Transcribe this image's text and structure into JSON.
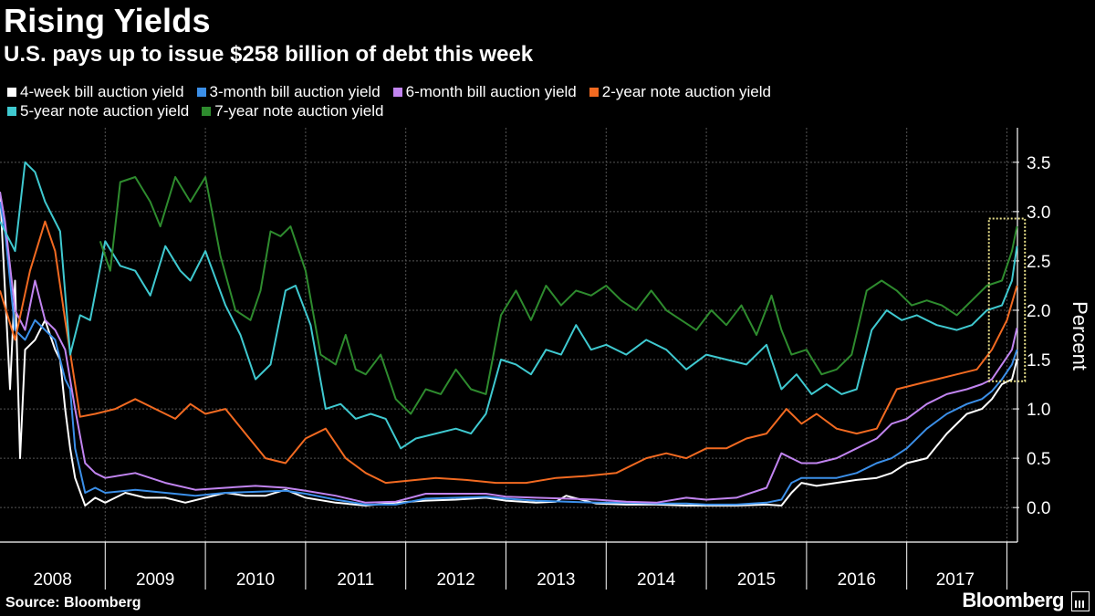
{
  "header": {
    "title": "Rising Yields",
    "subtitle": "U.S. pays up to issue $258 billion of debt this week"
  },
  "footer": {
    "source": "Source: Bloomberg",
    "brand": "Bloomberg"
  },
  "colors": {
    "bg": "#000000",
    "grid": "#555555",
    "highlight": "#e8e08a"
  },
  "chart_data": {
    "type": "line",
    "title": "Rising Yields",
    "subtitle": "U.S. pays up to issue $258 billion of debt this week",
    "xlabel": "",
    "ylabel": "Percent",
    "x_range": [
      2007.95,
      2017.95
    ],
    "ylim": [
      -0.35,
      3.85
    ],
    "y_ticks": [
      0.0,
      0.5,
      1.0,
      1.5,
      2.0,
      2.5,
      3.0,
      3.5
    ],
    "y_tick_labels": [
      "0.0",
      "0.5",
      "1.0",
      "1.5",
      "2.0",
      "2.5",
      "3.0",
      "3.5"
    ],
    "x_tick_labels": [
      "2008",
      "2009",
      "2010",
      "2011",
      "2012",
      "2013",
      "2014",
      "2015",
      "2016",
      "2017"
    ],
    "highlight_box": {
      "x": [
        2017.82,
        2018.18
      ],
      "y": [
        1.28,
        2.93
      ]
    },
    "legend_rows": [
      [
        0,
        1,
        2,
        3
      ],
      [
        4,
        5
      ]
    ],
    "series": [
      {
        "name": "4-week bill auction yield",
        "color": "#ffffff",
        "x": [
          2007.95,
          2008.0,
          2008.05,
          2008.1,
          2008.15,
          2008.2,
          2008.3,
          2008.4,
          2008.5,
          2008.55,
          2008.6,
          2008.65,
          2008.7,
          2008.8,
          2008.9,
          2009.0,
          2009.2,
          2009.4,
          2009.6,
          2009.8,
          2010.0,
          2010.2,
          2010.4,
          2010.6,
          2010.8,
          2011.0,
          2011.3,
          2011.6,
          2011.9,
          2012.2,
          2012.5,
          2012.8,
          2013.0,
          2013.3,
          2013.5,
          2013.6,
          2013.9,
          2014.2,
          2014.5,
          2014.8,
          2015.0,
          2015.3,
          2015.6,
          2015.75,
          2015.85,
          2015.95,
          2016.1,
          2016.3,
          2016.5,
          2016.7,
          2016.85,
          2017.0,
          2017.2,
          2017.4,
          2017.6,
          2017.75,
          2017.85,
          2017.95,
          2018.05,
          2018.1
        ],
        "y": [
          3.2,
          2.2,
          1.2,
          2.3,
          0.5,
          1.6,
          1.7,
          1.9,
          1.6,
          1.5,
          1.0,
          0.6,
          0.3,
          0.02,
          0.1,
          0.05,
          0.15,
          0.1,
          0.1,
          0.05,
          0.1,
          0.15,
          0.12,
          0.12,
          0.18,
          0.1,
          0.05,
          0.02,
          0.05,
          0.07,
          0.08,
          0.1,
          0.07,
          0.05,
          0.06,
          0.12,
          0.04,
          0.03,
          0.03,
          0.02,
          0.02,
          0.02,
          0.03,
          0.02,
          0.15,
          0.25,
          0.22,
          0.25,
          0.28,
          0.3,
          0.35,
          0.45,
          0.5,
          0.75,
          0.95,
          1.0,
          1.1,
          1.25,
          1.3,
          1.5
        ]
      },
      {
        "name": "3-month bill auction yield",
        "color": "#3b8fe8",
        "x": [
          2007.95,
          2008.0,
          2008.1,
          2008.2,
          2008.3,
          2008.4,
          2008.5,
          2008.6,
          2008.65,
          2008.7,
          2008.8,
          2008.9,
          2009.0,
          2009.3,
          2009.6,
          2009.9,
          2010.2,
          2010.5,
          2010.8,
          2011.0,
          2011.3,
          2011.6,
          2011.9,
          2012.2,
          2012.5,
          2012.8,
          2013.0,
          2013.3,
          2013.6,
          2013.9,
          2014.2,
          2014.5,
          2014.8,
          2015.0,
          2015.3,
          2015.6,
          2015.75,
          2015.85,
          2015.95,
          2016.1,
          2016.3,
          2016.5,
          2016.7,
          2016.85,
          2017.0,
          2017.2,
          2017.4,
          2017.6,
          2017.75,
          2017.85,
          2017.95,
          2018.05,
          2018.1
        ],
        "y": [
          3.1,
          2.8,
          1.8,
          1.7,
          1.9,
          1.8,
          1.7,
          1.3,
          1.2,
          0.6,
          0.15,
          0.2,
          0.15,
          0.18,
          0.15,
          0.12,
          0.15,
          0.16,
          0.17,
          0.14,
          0.08,
          0.03,
          0.03,
          0.09,
          0.1,
          0.11,
          0.09,
          0.07,
          0.06,
          0.05,
          0.05,
          0.04,
          0.04,
          0.03,
          0.03,
          0.05,
          0.08,
          0.25,
          0.3,
          0.3,
          0.3,
          0.35,
          0.45,
          0.5,
          0.6,
          0.8,
          0.95,
          1.05,
          1.1,
          1.18,
          1.3,
          1.45,
          1.6
        ]
      },
      {
        "name": "6-month bill auction yield",
        "color": "#c184f0",
        "x": [
          2007.95,
          2008.0,
          2008.1,
          2008.2,
          2008.3,
          2008.4,
          2008.5,
          2008.6,
          2008.7,
          2008.8,
          2008.9,
          2009.0,
          2009.3,
          2009.6,
          2009.9,
          2010.2,
          2010.5,
          2010.8,
          2011.0,
          2011.3,
          2011.6,
          2011.9,
          2012.2,
          2012.5,
          2012.8,
          2013.0,
          2013.3,
          2013.6,
          2013.9,
          2014.2,
          2014.5,
          2014.8,
          2015.0,
          2015.3,
          2015.6,
          2015.75,
          2015.85,
          2015.95,
          2016.1,
          2016.3,
          2016.5,
          2016.7,
          2016.85,
          2017.0,
          2017.2,
          2017.4,
          2017.6,
          2017.75,
          2017.85,
          2017.95,
          2018.05,
          2018.1
        ],
        "y": [
          3.2,
          2.9,
          2.0,
          1.8,
          2.3,
          1.9,
          1.8,
          1.6,
          1.0,
          0.45,
          0.35,
          0.3,
          0.35,
          0.25,
          0.18,
          0.2,
          0.22,
          0.2,
          0.17,
          0.12,
          0.05,
          0.06,
          0.14,
          0.14,
          0.14,
          0.11,
          0.1,
          0.09,
          0.08,
          0.06,
          0.05,
          0.1,
          0.08,
          0.1,
          0.2,
          0.55,
          0.5,
          0.45,
          0.45,
          0.5,
          0.6,
          0.7,
          0.85,
          0.9,
          1.05,
          1.15,
          1.2,
          1.25,
          1.3,
          1.45,
          1.6,
          1.82
        ]
      },
      {
        "name": "2-year note auction yield",
        "color": "#f26a21",
        "x": [
          2007.95,
          2008.1,
          2008.25,
          2008.4,
          2008.5,
          2008.6,
          2008.75,
          2008.9,
          2009.1,
          2009.3,
          2009.5,
          2009.7,
          2009.85,
          2010.0,
          2010.2,
          2010.4,
          2010.6,
          2010.8,
          2011.0,
          2011.2,
          2011.4,
          2011.6,
          2011.8,
          2012.0,
          2012.3,
          2012.6,
          2012.9,
          2013.2,
          2013.5,
          2013.8,
          2014.1,
          2014.4,
          2014.6,
          2014.8,
          2015.0,
          2015.2,
          2015.4,
          2015.6,
          2015.8,
          2015.95,
          2016.1,
          2016.3,
          2016.5,
          2016.7,
          2016.9,
          2017.1,
          2017.3,
          2017.5,
          2017.7,
          2017.85,
          2018.0,
          2018.1
        ],
        "y": [
          2.2,
          1.7,
          2.4,
          2.9,
          2.6,
          1.9,
          0.92,
          0.95,
          1.0,
          1.1,
          1.0,
          0.9,
          1.05,
          0.95,
          1.0,
          0.75,
          0.5,
          0.45,
          0.7,
          0.8,
          0.5,
          0.35,
          0.25,
          0.27,
          0.3,
          0.28,
          0.25,
          0.25,
          0.3,
          0.32,
          0.35,
          0.5,
          0.55,
          0.5,
          0.6,
          0.6,
          0.7,
          0.75,
          1.0,
          0.85,
          0.95,
          0.8,
          0.75,
          0.8,
          1.2,
          1.25,
          1.3,
          1.35,
          1.4,
          1.6,
          1.9,
          2.25
        ]
      },
      {
        "name": "5-year note auction yield",
        "color": "#3fc9d0",
        "x": [
          2007.95,
          2008.1,
          2008.2,
          2008.3,
          2008.4,
          2008.55,
          2008.65,
          2008.75,
          2008.85,
          2009.0,
          2009.15,
          2009.3,
          2009.45,
          2009.6,
          2009.75,
          2009.85,
          2010.0,
          2010.2,
          2010.35,
          2010.5,
          2010.65,
          2010.8,
          2010.9,
          2011.05,
          2011.2,
          2011.35,
          2011.5,
          2011.65,
          2011.8,
          2011.95,
          2012.1,
          2012.3,
          2012.5,
          2012.65,
          2012.8,
          2012.95,
          2013.1,
          2013.25,
          2013.4,
          2013.55,
          2013.7,
          2013.85,
          2014.0,
          2014.2,
          2014.4,
          2014.6,
          2014.8,
          2015.0,
          2015.2,
          2015.4,
          2015.6,
          2015.75,
          2015.9,
          2016.05,
          2016.2,
          2016.35,
          2016.5,
          2016.65,
          2016.8,
          2016.95,
          2017.1,
          2017.3,
          2017.5,
          2017.65,
          2017.8,
          2017.95,
          2018.05,
          2018.1
        ],
        "y": [
          2.9,
          2.6,
          3.5,
          3.4,
          3.1,
          2.8,
          1.55,
          1.95,
          1.9,
          2.7,
          2.45,
          2.4,
          2.15,
          2.65,
          2.4,
          2.3,
          2.6,
          2.05,
          1.75,
          1.3,
          1.45,
          2.2,
          2.25,
          1.85,
          1.0,
          1.05,
          0.9,
          0.95,
          0.9,
          0.6,
          0.7,
          0.75,
          0.8,
          0.75,
          0.95,
          1.5,
          1.45,
          1.35,
          1.6,
          1.55,
          1.85,
          1.6,
          1.65,
          1.55,
          1.7,
          1.6,
          1.4,
          1.55,
          1.5,
          1.45,
          1.65,
          1.2,
          1.35,
          1.15,
          1.25,
          1.15,
          1.2,
          1.8,
          2.0,
          1.9,
          1.95,
          1.85,
          1.8,
          1.85,
          2.0,
          2.05,
          2.3,
          2.65
        ]
      },
      {
        "name": "7-year note auction yield",
        "color": "#2e8b2e",
        "x": [
          2008.95,
          2009.05,
          2009.15,
          2009.3,
          2009.45,
          2009.55,
          2009.7,
          2009.85,
          2010.0,
          2010.15,
          2010.3,
          2010.45,
          2010.55,
          2010.65,
          2010.75,
          2010.85,
          2011.0,
          2011.15,
          2011.3,
          2011.4,
          2011.5,
          2011.6,
          2011.75,
          2011.9,
          2012.05,
          2012.2,
          2012.35,
          2012.5,
          2012.65,
          2012.8,
          2012.95,
          2013.1,
          2013.25,
          2013.4,
          2013.55,
          2013.7,
          2013.85,
          2014.0,
          2014.15,
          2014.3,
          2014.45,
          2014.6,
          2014.75,
          2014.9,
          2015.05,
          2015.2,
          2015.35,
          2015.5,
          2015.65,
          2015.75,
          2015.85,
          2016.0,
          2016.15,
          2016.3,
          2016.45,
          2016.6,
          2016.75,
          2016.9,
          2017.05,
          2017.2,
          2017.35,
          2017.5,
          2017.65,
          2017.8,
          2017.95,
          2018.05,
          2018.1
        ],
        "y": [
          2.7,
          2.4,
          3.3,
          3.35,
          3.1,
          2.85,
          3.35,
          3.1,
          3.35,
          2.55,
          2.0,
          1.9,
          2.2,
          2.8,
          2.75,
          2.85,
          2.4,
          1.55,
          1.45,
          1.75,
          1.4,
          1.35,
          1.55,
          1.1,
          0.95,
          1.2,
          1.15,
          1.4,
          1.2,
          1.15,
          1.95,
          2.2,
          1.9,
          2.25,
          2.05,
          2.2,
          2.15,
          2.25,
          2.1,
          2.0,
          2.2,
          2.0,
          1.9,
          1.8,
          2.0,
          1.85,
          2.05,
          1.75,
          2.15,
          1.8,
          1.55,
          1.6,
          1.35,
          1.4,
          1.55,
          2.2,
          2.3,
          2.2,
          2.05,
          2.1,
          2.05,
          1.95,
          2.1,
          2.25,
          2.3,
          2.6,
          2.85
        ]
      }
    ]
  }
}
